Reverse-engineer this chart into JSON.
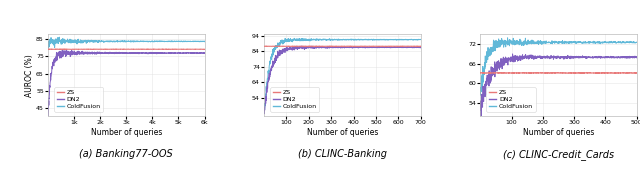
{
  "panels": [
    {
      "title": "(a) Banking77-OOS",
      "ylabel": "AUROC (%)",
      "xlabel": "Number of queries",
      "xlim": [
        0,
        6000
      ],
      "ylim": [
        40,
        88
      ],
      "yticks": [
        45,
        55,
        65,
        75,
        85
      ],
      "xticks": [
        1000,
        2000,
        3000,
        4000,
        5000,
        6000
      ],
      "xticklabels": [
        "1k",
        "2k",
        "3k",
        "4k",
        "5k",
        "6k"
      ],
      "zs_level": 79.2,
      "dn2_start": 41,
      "dn2_end": 77.0,
      "dn2_rise_x": 400,
      "cf_start": 82.0,
      "cf_end": 83.8,
      "cf_rise_x": 200,
      "n_points": 6000,
      "legend_loc": "lower left"
    },
    {
      "title": "(b) CLINC-Banking",
      "ylabel": "AUROC (%)",
      "xlabel": "Number of queries",
      "xlim": [
        0,
        700
      ],
      "ylim": [
        42,
        95
      ],
      "yticks": [
        54,
        64,
        74,
        84,
        94
      ],
      "xticks": [
        100,
        200,
        300,
        400,
        500,
        600,
        700
      ],
      "xticklabels": [
        "100",
        "200",
        "300",
        "400",
        "500",
        "600",
        "700"
      ],
      "zs_level": 87.2,
      "dn2_start": 43,
      "dn2_end": 86.5,
      "dn2_rise_x": 100,
      "cf_start": 43,
      "cf_end": 91.5,
      "cf_rise_x": 80,
      "n_points": 700,
      "legend_loc": "lower right"
    },
    {
      "title": "(c) CLINC-Credit_Cards",
      "ylabel": "AUROC (%)",
      "xlabel": "Number of queries",
      "xlim": [
        0,
        500
      ],
      "ylim": [
        50,
        75
      ],
      "yticks": [
        54,
        60,
        66,
        72
      ],
      "xticks": [
        100,
        200,
        300,
        400,
        500
      ],
      "xticklabels": [
        "100",
        "200",
        "300",
        "400",
        "500"
      ],
      "zs_level": 63.2,
      "dn2_start": 51,
      "dn2_end": 68.0,
      "dn2_rise_x": 100,
      "cf_start": 56,
      "cf_end": 72.5,
      "cf_rise_x": 60,
      "n_points": 500,
      "legend_loc": "lower right"
    }
  ],
  "colors": {
    "zs": "#e87878",
    "dn2": "#8060c0",
    "cf": "#60b8d8"
  },
  "figure_bgcolor": "#ffffff",
  "grid_color": "#dddddd",
  "grid_alpha": 0.7,
  "grid_linewidth": 0.4,
  "line_linewidth": 0.7,
  "spine_color": "#aaaaaa",
  "tick_labelsize": 4.5,
  "axis_labelsize": 5.5,
  "legend_fontsize": 4.5,
  "caption_fontsize": 7.0
}
